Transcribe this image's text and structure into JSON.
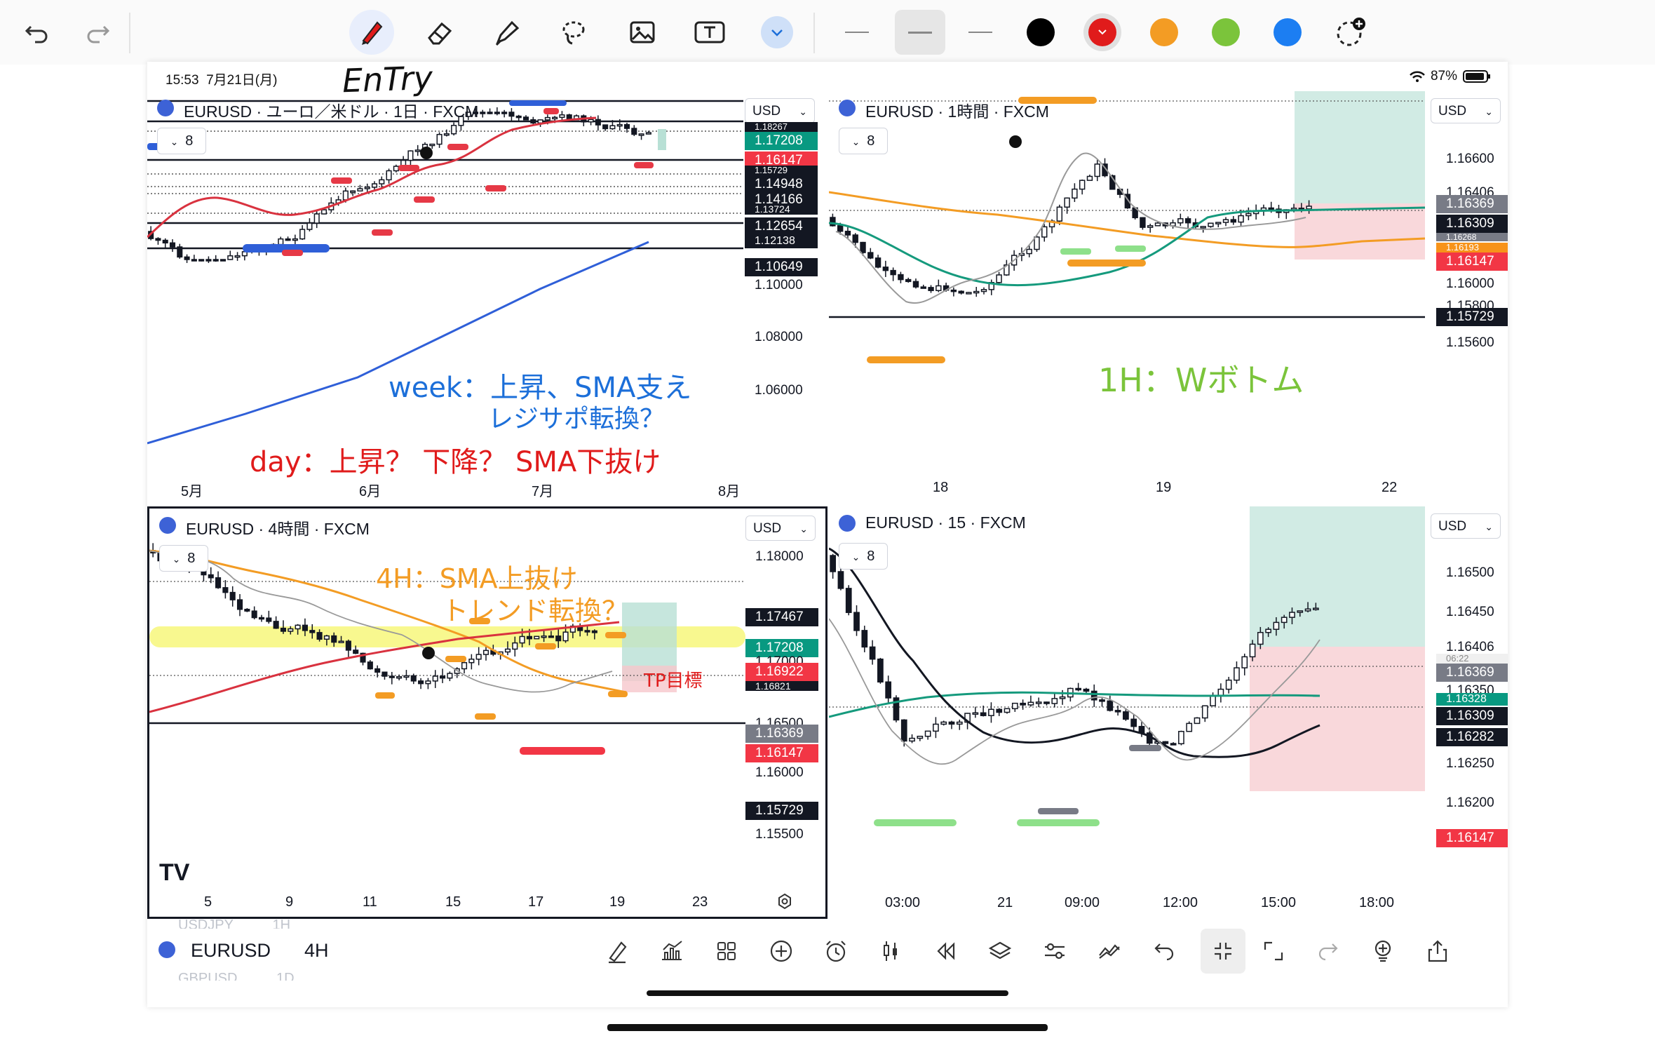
{
  "status": {
    "time": "15:53",
    "date": "7月21日(月)",
    "battery": "87%"
  },
  "toolbar": {
    "undo_icon": "undo-icon",
    "redo_icon": "redo-icon",
    "tools": [
      "pen-icon",
      "eraser-icon",
      "highlighter-icon",
      "lasso-icon",
      "image-icon",
      "text-box-icon",
      "more-tools-chevron-icon"
    ],
    "colors": [
      "#000000",
      "#e01b1b",
      "#f39c24",
      "#7bc43b",
      "#1c7ef2"
    ]
  },
  "panels": {
    "daily": {
      "title": "EURUSD · ユーロ／米ドル · 1日 · FXCM",
      "indicator_count": "8",
      "currency": "USD",
      "prices": [
        "1.10000",
        "1.08000",
        "1.06000"
      ],
      "tags": [
        {
          "text": "1.17208",
          "color": "green"
        },
        {
          "text": "1.16147",
          "color": "red"
        },
        {
          "text": "1.15729",
          "color": "black"
        },
        {
          "text": "1.14948",
          "color": "black"
        },
        {
          "text": "1.14166",
          "color": "black"
        },
        {
          "text": "1.13724",
          "color": "black"
        },
        {
          "text": "1.12654",
          "color": "black"
        },
        {
          "text": "1.12138",
          "color": "black"
        },
        {
          "text": "1.10649",
          "color": "black"
        },
        {
          "text": "1.18267",
          "color": "black"
        }
      ],
      "xaxis": [
        "5月",
        "6月",
        "7月",
        "8月"
      ]
    },
    "hourly": {
      "title": "EURUSD · 1時間 · FXCM",
      "indicator_count": "8",
      "currency": "USD",
      "prices": [
        "1.16600",
        "1.16406",
        "1.16000",
        "1.15800",
        "1.15600"
      ],
      "tags": [
        {
          "text": "1.16369",
          "color": "gray"
        },
        {
          "text": "1.16309",
          "color": "black"
        },
        {
          "text": "1.16268",
          "color": "gray"
        },
        {
          "text": "1.16193",
          "color": "orange"
        },
        {
          "text": "1.16147",
          "color": "red"
        },
        {
          "text": "1.15729",
          "color": "black"
        }
      ],
      "xaxis": [
        "18",
        "19",
        "22"
      ]
    },
    "h4": {
      "title": "EURUSD · 4時間 · FXCM",
      "indicator_count": "8",
      "currency": "USD",
      "prices": [
        "1.18000",
        "1.17000",
        "1.16500",
        "1.16000",
        "1.15500"
      ],
      "tags": [
        {
          "text": "1.17467",
          "color": "black"
        },
        {
          "text": "1.17208",
          "color": "green"
        },
        {
          "text": "1.16922",
          "color": "red"
        },
        {
          "text": "1.16821",
          "color": "black"
        },
        {
          "text": "1.16369",
          "color": "gray"
        },
        {
          "text": "1.16147",
          "color": "red"
        },
        {
          "text": "1.15729",
          "color": "black"
        }
      ],
      "xaxis": [
        "5",
        "9",
        "11",
        "15",
        "17",
        "19",
        "23"
      ],
      "logo": "TV"
    },
    "m15": {
      "title": "EURUSD · 15 · FXCM",
      "indicator_count": "8",
      "currency": "USD",
      "prices": [
        "1.16500",
        "1.16450",
        "1.16406",
        "1.16350",
        "1.16250",
        "1.16200"
      ],
      "tags": [
        {
          "text": "1.16369",
          "color": "gray"
        },
        {
          "text": "06:22",
          "color": "gray"
        },
        {
          "text": "1.16328",
          "color": "green"
        },
        {
          "text": "1.16309",
          "color": "black"
        },
        {
          "text": "1.16282",
          "color": "black"
        },
        {
          "text": "1.16147",
          "color": "red"
        }
      ],
      "xaxis": [
        "03:00",
        "21",
        "09:00",
        "12:00",
        "15:00",
        "18:00"
      ]
    }
  },
  "notes": {
    "entry": "EnTry",
    "week": "week：上昇、SMA支え",
    "week2": "レジサポ転換？",
    "day": "day：上昇？ 下降？ SMA下抜け",
    "h1": "1H：Wボトム",
    "h4_1": "4H：SMA上抜け",
    "h4_2": "トレンド転換？",
    "tp": "TP目標"
  },
  "bottom": {
    "symbol": "EURUSD",
    "interval": "4H",
    "above_symbol": "USDJPY",
    "above_interval": "1H",
    "below_symbol": "GBPUSD",
    "below_interval": "1D"
  }
}
